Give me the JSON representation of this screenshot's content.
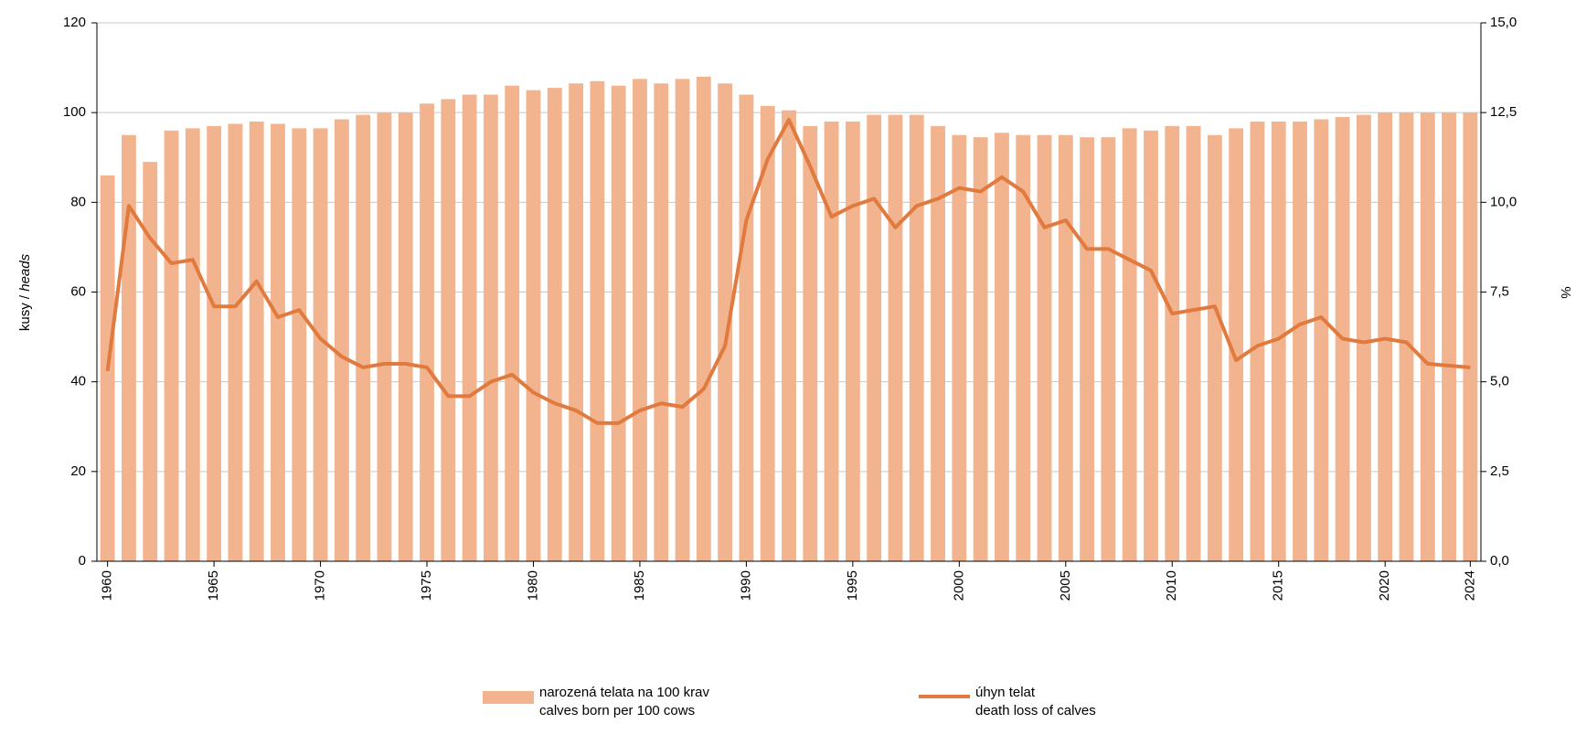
{
  "chart_data": {
    "type": "bar_line",
    "y_label": "kusy /",
    "y_label_italic": "heads",
    "y2_label": "%",
    "x": [
      1960,
      1961,
      1962,
      1963,
      1964,
      1965,
      1966,
      1967,
      1968,
      1969,
      1970,
      1971,
      1972,
      1973,
      1974,
      1975,
      1976,
      1977,
      1978,
      1979,
      1980,
      1981,
      1982,
      1983,
      1984,
      1985,
      1986,
      1987,
      1988,
      1989,
      1990,
      1991,
      1992,
      1993,
      1994,
      1995,
      1996,
      1997,
      1998,
      1999,
      2000,
      2001,
      2002,
      2003,
      2004,
      2005,
      2006,
      2007,
      2008,
      2009,
      2010,
      2011,
      2012,
      2013,
      2014,
      2015,
      2016,
      2017,
      2018,
      2019,
      2020,
      2021,
      2022,
      2023,
      2024
    ],
    "xlim": [
      1959.5,
      2024.5
    ],
    "xticks": [
      1960,
      1965,
      1970,
      1975,
      1980,
      1985,
      1990,
      1995,
      2000,
      2005,
      2010,
      2015,
      2020,
      2024
    ],
    "ylim": [
      0,
      120
    ],
    "yticks": [
      0,
      20,
      40,
      60,
      80,
      100,
      120
    ],
    "y2lim": [
      0,
      15
    ],
    "y2ticks": [
      {
        "value": 0,
        "label": "0,0"
      },
      {
        "value": 2.5,
        "label": "2,5"
      },
      {
        "value": 5,
        "label": "5,0"
      },
      {
        "value": 7.5,
        "label": "7,5"
      },
      {
        "value": 10,
        "label": "10,0"
      },
      {
        "value": 12.5,
        "label": "12,5"
      },
      {
        "value": 15,
        "label": "15,0"
      }
    ],
    "grid": true,
    "series": [
      {
        "name": "narozená telata na 100 krav\ncalves born per 100 cows",
        "kind": "bar",
        "color": "#f2b48e",
        "values": [
          86,
          95,
          89,
          96,
          96.5,
          97,
          97.5,
          98,
          97.5,
          96.5,
          96.5,
          98.5,
          99.5,
          100,
          100,
          102,
          103,
          104,
          104,
          106,
          105,
          105.5,
          106.5,
          107,
          106,
          107.5,
          106.5,
          107.5,
          108,
          106.5,
          104,
          101.5,
          100.5,
          97,
          98,
          98,
          99.5,
          99.5,
          99.5,
          97,
          95,
          94.5,
          95.5,
          95,
          95,
          95,
          94.5,
          94.5,
          96.5,
          96,
          97,
          97,
          95,
          96.5,
          98,
          98,
          98,
          98.5,
          99,
          99.5,
          100,
          100,
          100,
          100,
          100
        ]
      },
      {
        "name": "úhyn telat\ndeath loss of calves",
        "kind": "line",
        "axis": "y2",
        "color": "#e07a3e",
        "values": [
          5.3,
          9.9,
          9.0,
          8.3,
          8.4,
          7.1,
          7.1,
          7.8,
          6.8,
          7.0,
          6.2,
          5.7,
          5.4,
          5.5,
          5.5,
          5.4,
          4.6,
          4.6,
          5.0,
          5.2,
          4.7,
          4.4,
          4.2,
          3.85,
          3.85,
          4.2,
          4.4,
          4.3,
          4.8,
          6.0,
          9.5,
          11.2,
          12.3,
          11.0,
          9.6,
          9.9,
          10.1,
          9.3,
          9.9,
          10.1,
          10.4,
          10.3,
          10.7,
          10.3,
          9.3,
          9.5,
          8.7,
          8.7,
          8.4,
          8.1,
          6.9,
          7.0,
          7.1,
          5.6,
          6.0,
          6.2,
          6.6,
          6.8,
          6.2,
          6.1,
          6.2,
          6.1,
          5.5,
          5.45,
          5.4
        ]
      }
    ]
  }
}
